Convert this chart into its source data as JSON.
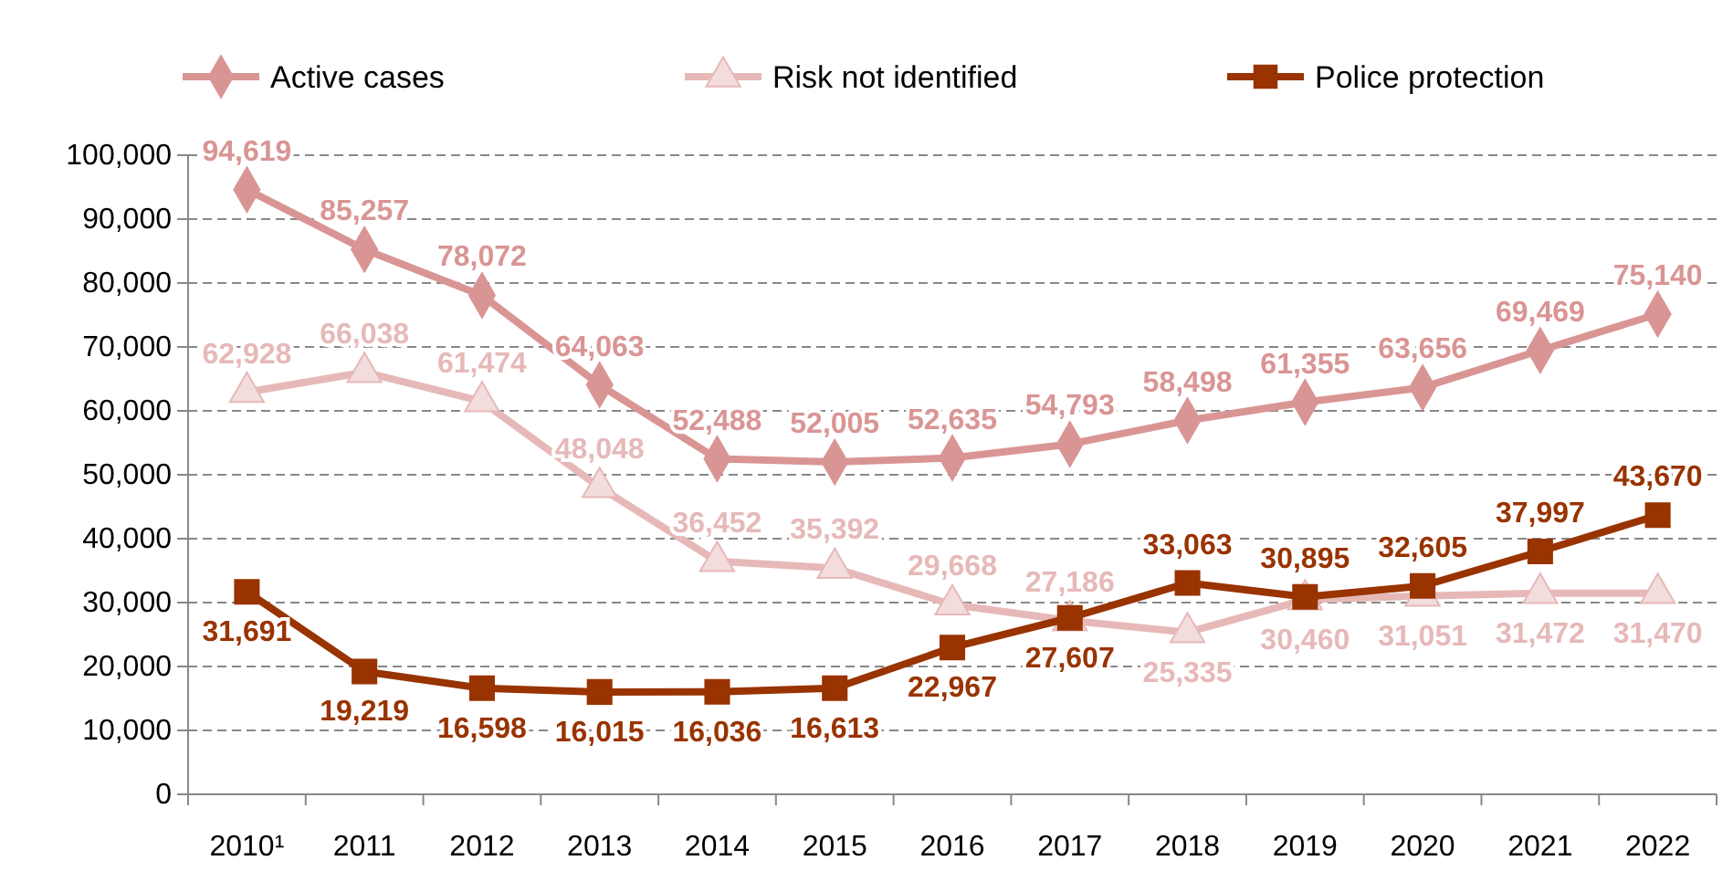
{
  "chart_data": {
    "type": "line",
    "categories": [
      "2010¹",
      "2011",
      "2012",
      "2013",
      "2014",
      "2015",
      "2016",
      "2017",
      "2018",
      "2019",
      "2020",
      "2021",
      "2022"
    ],
    "series": [
      {
        "name": "Active cases",
        "color": "#d99594",
        "marker": "diamond",
        "values": [
          94619,
          85257,
          78072,
          64063,
          52488,
          52005,
          52635,
          54793,
          58498,
          61355,
          63656,
          69469,
          75140
        ],
        "value_labels": [
          "94,619",
          "85,257",
          "78,072",
          "64,063",
          "52,488",
          "52,005",
          "52,635",
          "54,793",
          "58,498",
          "61,355",
          "63,656",
          "69,469",
          "75,140"
        ]
      },
      {
        "name": "Risk not identified",
        "color": "#e6b9b8",
        "marker": "triangle",
        "values": [
          62928,
          66038,
          61474,
          48048,
          36452,
          35392,
          29668,
          27186,
          25335,
          30460,
          31051,
          31472,
          31470
        ],
        "value_labels": [
          "62,928",
          "66,038",
          "61,474",
          "48,048",
          "36,452",
          "35,392",
          "29,668",
          "27,186",
          "25,335",
          "30,460",
          "31,051",
          "31,472",
          "31,470"
        ]
      },
      {
        "name": "Police protection",
        "color": "#993300",
        "marker": "square",
        "values": [
          31691,
          19219,
          16598,
          16015,
          16036,
          16613,
          22967,
          27607,
          33063,
          30895,
          32605,
          37997,
          43670
        ],
        "value_labels": [
          "31,691",
          "19,219",
          "16,598",
          "16,015",
          "16,036",
          "16,613",
          "22,967",
          "27,607",
          "33,063",
          "30,895",
          "32,605",
          "37,997",
          "43,670"
        ]
      }
    ],
    "ylim": [
      0,
      100000
    ],
    "yticks": [
      {
        "value": 0,
        "label": "0"
      },
      {
        "value": 10000,
        "label": "10,000"
      },
      {
        "value": 20000,
        "label": "20,000"
      },
      {
        "value": 30000,
        "label": "30,000"
      },
      {
        "value": 40000,
        "label": "40,000"
      },
      {
        "value": 50000,
        "label": "50,000"
      },
      {
        "value": 60000,
        "label": "60,000"
      },
      {
        "value": 70000,
        "label": "70,000"
      },
      {
        "value": 80000,
        "label": "80,000"
      },
      {
        "value": 90000,
        "label": "90,000"
      },
      {
        "value": 100000,
        "label": "100,000"
      }
    ],
    "grid": "y",
    "legend": "top",
    "data_labels": true,
    "line_style": "solid"
  }
}
